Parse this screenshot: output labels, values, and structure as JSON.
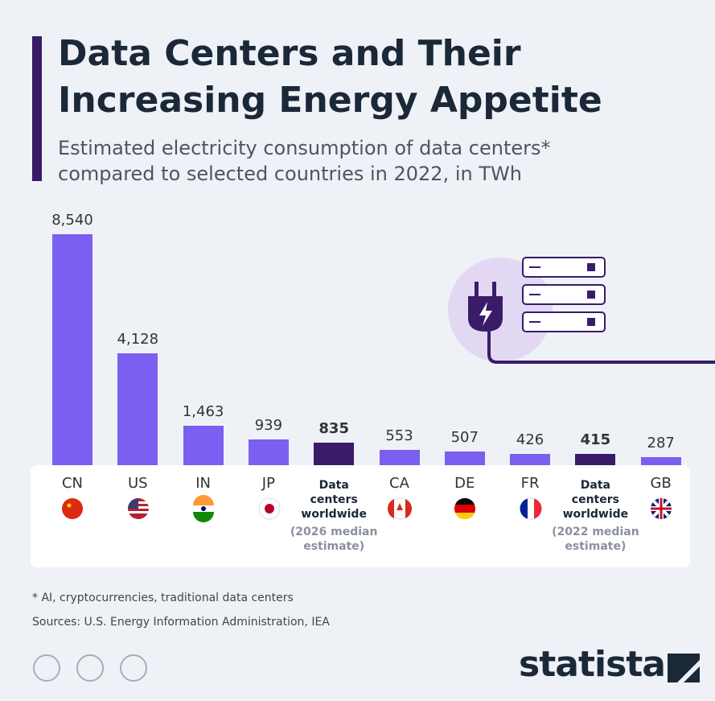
{
  "chart_data": {
    "type": "bar",
    "title": "Data Centers and Their Increasing Energy Appetite",
    "subtitle": "Estimated electricity consumption of data centers* compared to selected countries in 2022, in TWh",
    "categories": [
      "CN",
      "US",
      "IN",
      "JP",
      "Data centers worldwide",
      "CA",
      "DE",
      "FR",
      "Data centers worldwide",
      "GB"
    ],
    "category_notes": [
      null,
      null,
      null,
      null,
      "(2026 median estimate)",
      null,
      null,
      null,
      "(2022 median estimate)",
      null
    ],
    "values": [
      8540,
      4128,
      1463,
      939,
      835,
      553,
      507,
      426,
      415,
      287
    ],
    "value_labels": [
      "8,540",
      "4,128",
      "1,463",
      "939",
      "835",
      "553",
      "507",
      "426",
      "415",
      "287"
    ],
    "colors": [
      "#7b5ff0",
      "#7b5ff0",
      "#7b5ff0",
      "#7b5ff0",
      "#3a1b68",
      "#7b5ff0",
      "#7b5ff0",
      "#7b5ff0",
      "#3a1b68",
      "#7b5ff0"
    ],
    "highlight": [
      false,
      false,
      false,
      false,
      true,
      false,
      false,
      false,
      true,
      false
    ],
    "footnote": "* AI, cryptocurrencies, traditional data centers",
    "source": "Sources: U.S. Energy Information Administration, IEA",
    "brand": "statista"
  }
}
